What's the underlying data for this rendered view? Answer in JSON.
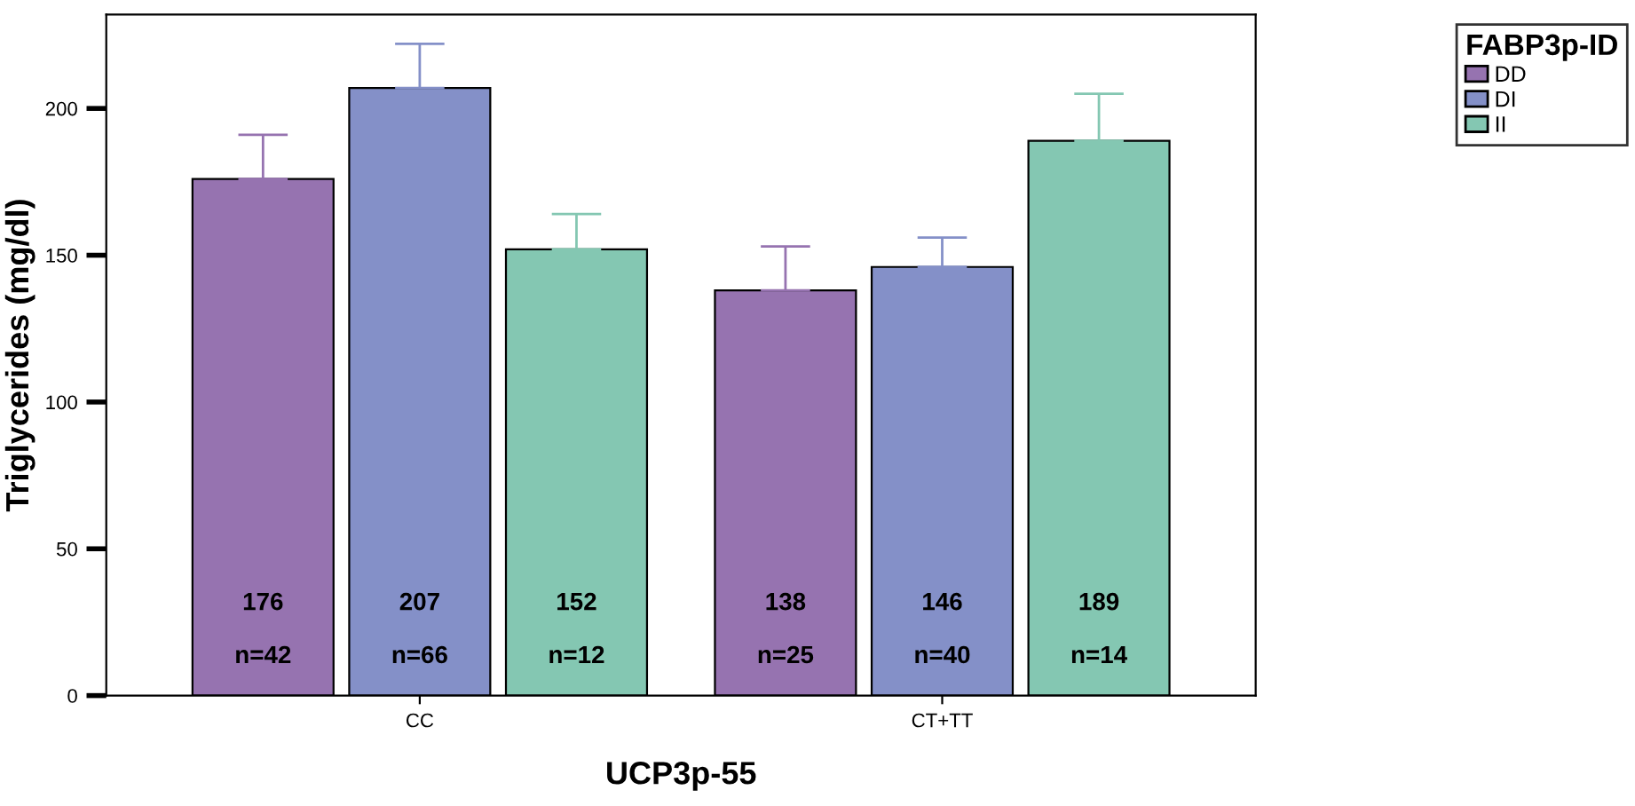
{
  "chart_data": {
    "type": "bar",
    "xlabel": "UCP3p-55",
    "ylabel": "Triglycerides (mg/dl)",
    "legend_title": "FABP3p-ID",
    "categories": [
      "CC",
      "CT+TT"
    ],
    "series": [
      {
        "name": "DD",
        "color": "#9673b0",
        "values": [
          176,
          138
        ],
        "errors": [
          [
            176,
            191
          ],
          [
            138,
            153
          ]
        ]
      },
      {
        "name": "DI",
        "color": "#8490c8",
        "values": [
          207,
          146
        ],
        "errors": [
          [
            207,
            222
          ],
          [
            146,
            156
          ]
        ]
      },
      {
        "name": "II",
        "color": "#84c7b2",
        "values": [
          152,
          189
        ],
        "errors": [
          [
            152,
            164
          ],
          [
            189,
            205
          ]
        ]
      }
    ],
    "ylim": [
      0,
      232
    ],
    "yticks": [
      0,
      50,
      100,
      150,
      200
    ],
    "grid": false,
    "legend": "top right",
    "data_labels": true,
    "annotations": [
      "n=42",
      "n=66",
      "n=12",
      "n=25",
      "n=40",
      "n=14"
    ]
  }
}
